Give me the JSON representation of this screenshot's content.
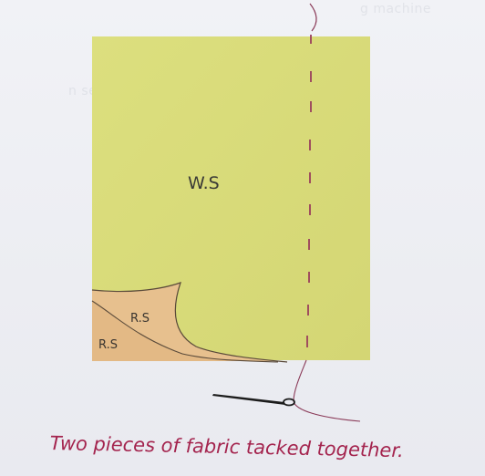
{
  "fabric_labels": {
    "wrong_side": "W.S",
    "right_side_top": "R.S",
    "right_side_bottom": "R.S"
  },
  "caption": "Two pieces of fabric tacked together.",
  "colors": {
    "fabric_top": "#d9dc7a",
    "fabric_underside": "#e6bf8e",
    "tacking_stitches": "#9a3f5c",
    "caption_text": "#a4244e",
    "needle": "#1c1c1c"
  },
  "icons": {
    "needle": "needle-icon",
    "thread": "thread-icon"
  }
}
